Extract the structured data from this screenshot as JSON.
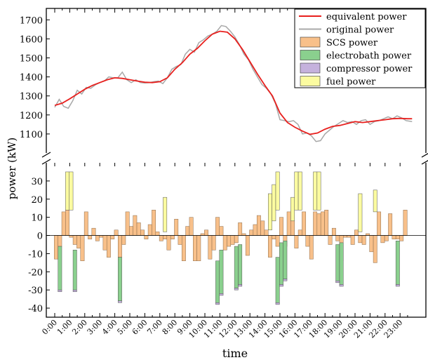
{
  "chart_data": {
    "type": "line+stacked-bar (broken y-axis)",
    "xlabel": "time",
    "ylabel": "power (kW)",
    "x_tick_labels": [
      "0:00",
      "1:00",
      "2:00",
      "3:00",
      "4:00",
      "5:00",
      "6:00",
      "7:00",
      "8:00",
      "9:00",
      "10:00",
      "11:00",
      "12:00",
      "13:00",
      "14:00",
      "15:00",
      "16:00",
      "17:00",
      "18:00",
      "19:00",
      "20:00",
      "21:00",
      "22:00",
      "23:00"
    ],
    "x_unit": "hours",
    "xlim": [
      0,
      23.8
    ],
    "top_panel": {
      "ylim": [
        1000,
        1760
      ],
      "yticks": [
        1100,
        1200,
        1300,
        1400,
        1500,
        1600,
        1700
      ],
      "series": [
        {
          "name": "equivalent power",
          "color": "#e8201e",
          "x": [
            0,
            0.5,
            1,
            1.5,
            2,
            2.5,
            3,
            3.5,
            4,
            4.5,
            5,
            5.5,
            6,
            6.5,
            7,
            7.5,
            8,
            8.5,
            9,
            9.5,
            10,
            10.5,
            11,
            11.5,
            12,
            12.5,
            13,
            13.5,
            14,
            14.5,
            15,
            15.5,
            16,
            16.5,
            17,
            17.5,
            18,
            18.5,
            19,
            19.5,
            20,
            20.5,
            21,
            21.5,
            22,
            22.5,
            23,
            23.5,
            23.8
          ],
          "y": [
            1250,
            1262,
            1285,
            1310,
            1335,
            1355,
            1370,
            1385,
            1395,
            1392,
            1385,
            1378,
            1372,
            1370,
            1375,
            1395,
            1440,
            1475,
            1520,
            1550,
            1590,
            1625,
            1640,
            1635,
            1600,
            1545,
            1480,
            1415,
            1355,
            1300,
            1210,
            1160,
            1135,
            1115,
            1098,
            1105,
            1125,
            1140,
            1145,
            1155,
            1165,
            1160,
            1165,
            1170,
            1175,
            1180,
            1182,
            1180,
            1180
          ]
        },
        {
          "name": "original power",
          "color": "#a8a8a8",
          "x": [
            0,
            0.3,
            0.6,
            0.9,
            1.2,
            1.5,
            1.8,
            2.1,
            2.4,
            2.7,
            3,
            3.3,
            3.6,
            3.9,
            4.2,
            4.5,
            4.8,
            5.1,
            5.4,
            5.7,
            6,
            6.3,
            6.6,
            6.9,
            7.2,
            7.5,
            7.8,
            8.1,
            8.4,
            8.7,
            9,
            9.3,
            9.6,
            9.9,
            10.2,
            10.5,
            10.8,
            11.1,
            11.4,
            11.7,
            12,
            12.3,
            12.6,
            12.9,
            13.2,
            13.5,
            13.8,
            14.1,
            14.4,
            14.7,
            15,
            15.3,
            15.6,
            15.9,
            16.2,
            16.5,
            16.8,
            17.1,
            17.4,
            17.7,
            18,
            18.3,
            18.6,
            18.9,
            19.2,
            19.5,
            19.8,
            20.1,
            20.4,
            20.7,
            21,
            21.3,
            21.6,
            21.9,
            22.2,
            22.5,
            22.8,
            23.1,
            23.4,
            23.8
          ],
          "y": [
            1240,
            1282,
            1245,
            1235,
            1275,
            1330,
            1310,
            1345,
            1340,
            1358,
            1370,
            1378,
            1400,
            1395,
            1395,
            1425,
            1385,
            1370,
            1385,
            1370,
            1368,
            1370,
            1375,
            1378,
            1365,
            1395,
            1440,
            1455,
            1465,
            1520,
            1545,
            1530,
            1580,
            1595,
            1615,
            1625,
            1640,
            1670,
            1665,
            1640,
            1610,
            1570,
            1520,
            1490,
            1440,
            1400,
            1360,
            1340,
            1310,
            1260,
            1175,
            1170,
            1165,
            1170,
            1150,
            1100,
            1105,
            1090,
            1060,
            1065,
            1100,
            1120,
            1140,
            1155,
            1170,
            1160,
            1165,
            1150,
            1170,
            1175,
            1150,
            1165,
            1170,
            1180,
            1190,
            1180,
            1195,
            1185,
            1170,
            1165
          ]
        }
      ]
    },
    "bottom_panel": {
      "ylim": [
        -45,
        40
      ],
      "yticks": [
        -40,
        -30,
        -20,
        -10,
        0,
        10,
        20,
        30
      ],
      "bar_width_h": 0.5,
      "series": [
        {
          "name": "SCS power",
          "color": "#f8c08a",
          "x": [
            0,
            0.25,
            0.5,
            0.75,
            1,
            1.25,
            1.5,
            1.75,
            2,
            2.25,
            2.5,
            2.75,
            3,
            3.25,
            3.5,
            3.75,
            4,
            4.25,
            4.5,
            4.75,
            5,
            5.25,
            5.5,
            5.75,
            6,
            6.25,
            6.5,
            6.75,
            7,
            7.25,
            7.5,
            7.75,
            8,
            8.25,
            8.5,
            8.75,
            9,
            9.25,
            9.5,
            9.75,
            10,
            10.25,
            10.5,
            10.75,
            11,
            11.25,
            11.5,
            11.75,
            12,
            12.25,
            12.5,
            12.75,
            13,
            13.25,
            13.5,
            13.75,
            14,
            14.25,
            14.5,
            14.75,
            15,
            15.25,
            15.5,
            15.75,
            16,
            16.25,
            16.5,
            16.75,
            17,
            17.25,
            17.5,
            17.75,
            18,
            18.25,
            18.5,
            18.75,
            19,
            19.25,
            19.5,
            19.75,
            20,
            20.25,
            20.5,
            20.75,
            21,
            21.25,
            21.5,
            21.75,
            22,
            22.25,
            22.5,
            22.75,
            23,
            23.25,
            23.5,
            23.75
          ],
          "values": [
            -13,
            -6,
            13,
            14,
            -1,
            -5,
            -7,
            -14,
            13,
            -2,
            4,
            -3,
            -1,
            -8,
            -12,
            -2,
            3,
            -12,
            -5,
            13,
            5,
            11,
            7,
            3,
            -2,
            6,
            14,
            2,
            -3,
            -2,
            -8,
            -2,
            9,
            -5,
            -14,
            5,
            10,
            -14,
            -14,
            1,
            3,
            -13,
            -8,
            10,
            5,
            -8,
            -6,
            -5,
            -4,
            7,
            1,
            -11,
            3,
            6,
            11,
            8,
            3,
            -12,
            -2,
            -6,
            10,
            -6,
            13,
            14,
            -7,
            3,
            13,
            -6,
            -13,
            13,
            12,
            13,
            14,
            -5,
            4,
            -3,
            -14,
            -1,
            -1,
            -5,
            3,
            -4,
            -5,
            1,
            -9,
            -15,
            13,
            -4,
            -3,
            12,
            -2,
            -2,
            -3,
            14
          ],
          "scs_note": "SCS component of each half-hour bar"
        },
        {
          "name": "electrobath power",
          "color": "#8ad08e",
          "bars": [
            [
              0.25,
              -6,
              -24
            ],
            [
              1.25,
              -8,
              -22
            ],
            [
              4.25,
              -12,
              -24
            ],
            [
              10.75,
              -14,
              -23
            ],
            [
              11,
              -8,
              -24
            ],
            [
              12,
              -6,
              -23
            ],
            [
              12.25,
              -5,
              -22
            ],
            [
              14.75,
              -12,
              -25
            ],
            [
              15,
              -4,
              -23
            ],
            [
              15.25,
              -3,
              -21
            ],
            [
              18.75,
              -5,
              -20
            ],
            [
              19,
              -4,
              -23
            ],
            [
              22.75,
              -3,
              -24
            ]
          ]
        },
        {
          "name": "compressor power",
          "color": "#c5b2dd",
          "bars": [
            [
              0.25,
              -30,
              -1
            ],
            [
              1.25,
              -30,
              -1
            ],
            [
              4.25,
              -36,
              -1
            ],
            [
              10.75,
              -37,
              -1
            ],
            [
              11,
              -32,
              -1
            ],
            [
              12,
              -29,
              -1
            ],
            [
              12.25,
              -27,
              -1
            ],
            [
              14.75,
              -37,
              -1
            ],
            [
              15,
              -27,
              -1
            ],
            [
              15.25,
              -24,
              -1
            ],
            [
              18.75,
              -25,
              -1
            ],
            [
              19,
              -27,
              -1
            ],
            [
              22.75,
              -27,
              -1
            ]
          ]
        },
        {
          "name": "fuel power",
          "color": "#fbfba0",
          "bars": [
            [
              0.75,
              14,
              21
            ],
            [
              1,
              14,
              21
            ],
            [
              7.25,
              2,
              19
            ],
            [
              14.25,
              3,
              20
            ],
            [
              14.5,
              8,
              20
            ],
            [
              14.75,
              14,
              21
            ],
            [
              15.75,
              8,
              13
            ],
            [
              16,
              14,
              21
            ],
            [
              16.25,
              14,
              21
            ],
            [
              17.25,
              14,
              21
            ],
            [
              17.5,
              14,
              21
            ],
            [
              20.25,
              2,
              21
            ],
            [
              21.25,
              13,
              12
            ]
          ]
        }
      ]
    },
    "legend": [
      "equivalent power",
      "original power",
      "SCS power",
      "electrobath power",
      "compressor power",
      "fuel power"
    ],
    "legend_position": "top-right",
    "grid": false
  }
}
